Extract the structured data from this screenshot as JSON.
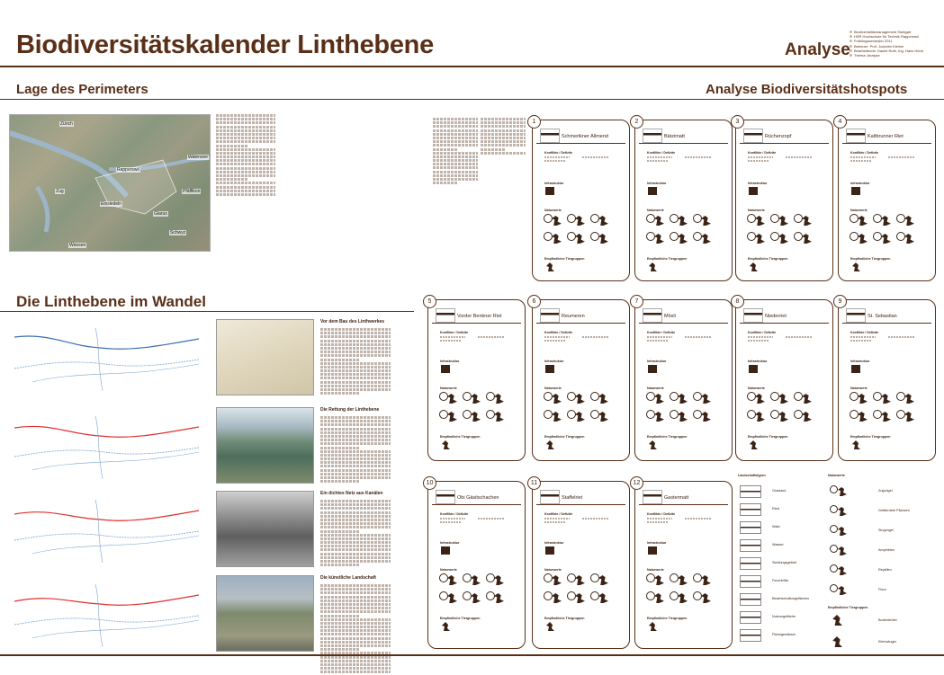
{
  "header": {
    "title": "Biodiversitätskalender Linthebene",
    "badge": "Analyse",
    "meta_lines": [
      "Biodiversitätsmanagement Stuttgart",
      "HSR Hochschule für Technik Rapperswil",
      "Frühlingssemester 2011",
      "Betreuer: Prof. Joachim Kleiner",
      "Bearbeitende: Daniel Roth, Ing. Hans Hürst",
      "Thema: Analyse"
    ]
  },
  "perimeter": {
    "heading": "Lage des Perimeters",
    "map_labels": [
      "Zürich",
      "Rapperswil",
      "Walensee",
      "Zug",
      "Einsiedeln",
      "Pfäffikon",
      "Glarus",
      "Schwyz",
      "Weesen"
    ]
  },
  "hotspots": {
    "heading": "Analyse Biodiversitätshotspots",
    "cards": [
      {
        "num": "1",
        "name": "Schmerikner Allmend"
      },
      {
        "num": "2",
        "name": "Bätzimatt"
      },
      {
        "num": "3",
        "name": "Rüchenzopf"
      },
      {
        "num": "4",
        "name": "Kaltbrunner Riet"
      },
      {
        "num": "5",
        "name": "Vorder Benkner Riet"
      },
      {
        "num": "6",
        "name": "Reumeren"
      },
      {
        "num": "7",
        "name": "Mösli"
      },
      {
        "num": "8",
        "name": "Niederriet"
      },
      {
        "num": "9",
        "name": "St. Sebastian"
      },
      {
        "num": "10",
        "name": "Obi Gäsitschachen"
      },
      {
        "num": "11",
        "name": "Staffelriet"
      },
      {
        "num": "12",
        "name": "Gastermatt"
      }
    ],
    "labels": {
      "konflikt": "Konflikte / Defizite",
      "infra": "Infrastruktur",
      "natur": "Naturwerte",
      "empf": "Empfindliche Tiergruppen"
    },
    "legend": {
      "left_title": "Landschaftstypen",
      "left_items": [
        "Grasland",
        "Ried",
        "Wald",
        "Wasser",
        "Siedlungsgebiet",
        "Feuchtrifla",
        "Bewirtschaftungsflächen",
        "Nutzungsfläche",
        "Fliessgewässer"
      ],
      "right_title": "Naturwerte",
      "right_items": [
        "Zugvögel",
        "Gefährdete Pflanzen",
        "Singvögel",
        "Amphibien",
        "Reptilien",
        "Flora"
      ],
      "right_title2": "Empfindliche Tiergruppen",
      "right_items2": [
        "Bodenbrüter",
        "Kleinsäuger"
      ]
    }
  },
  "wandel": {
    "heading": "Die Linthebene im Wandel",
    "sections": [
      {
        "title": "Vor dem Bau des Linthwerkes"
      },
      {
        "title": "Die Rettung der Linthebene"
      },
      {
        "title": "Ein dichtes Netz aus Kanälen"
      },
      {
        "title": "Die künstliche Landschaft"
      }
    ]
  }
}
